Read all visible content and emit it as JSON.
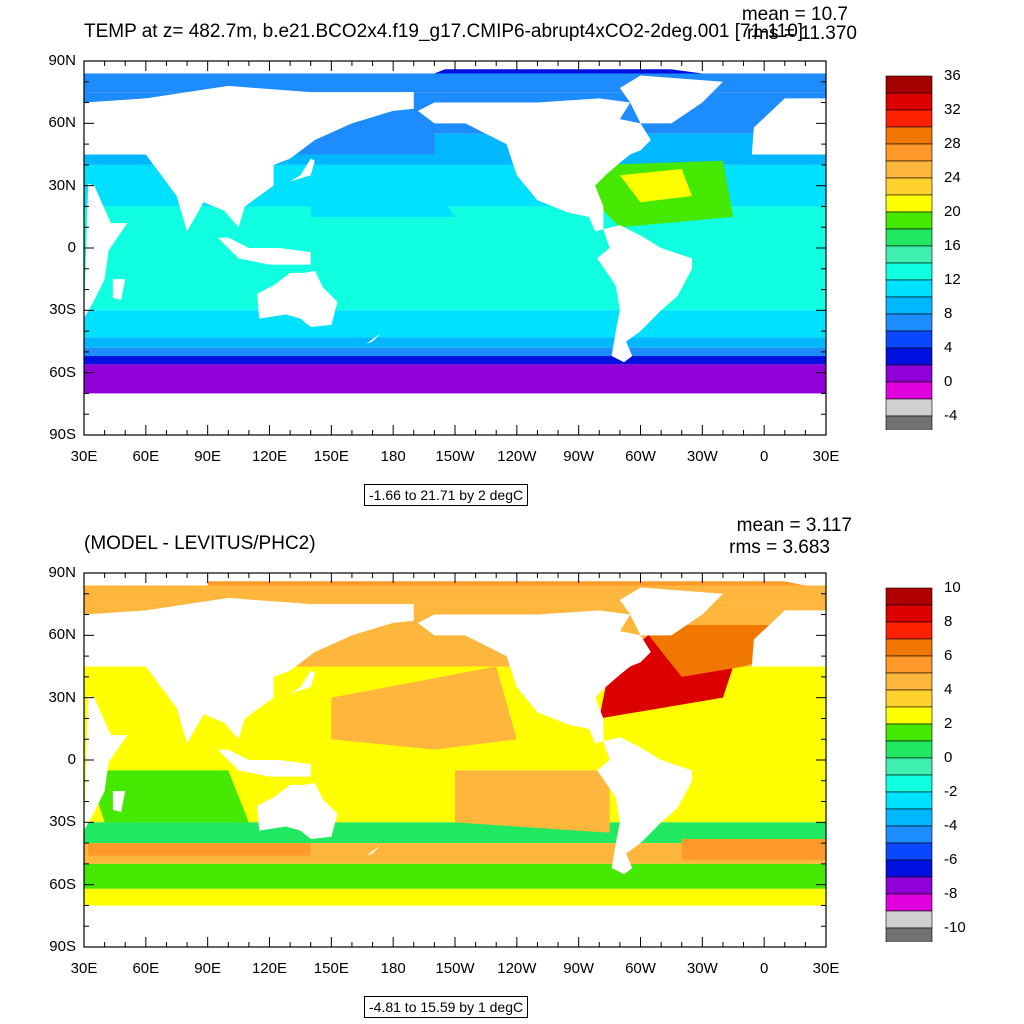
{
  "colors": {
    "land": "#ffffff",
    "axis": "#000000"
  },
  "panels": [
    {
      "title": "TEMP at z= 482.7m, b.e21.BCO2x4.f19_g17.CMIP6-abrupt4xCO2-2deg.001 [71-110]",
      "mean": "mean = 10.7",
      "rms": "rms = 11.370",
      "range_label": "-1.66 to 21.71 by 2 degC",
      "lat_labels": [
        "90N",
        "60N",
        "30N",
        "0",
        "30S",
        "60S",
        "90S"
      ],
      "lon_labels": [
        "30E",
        "60E",
        "90E",
        "120E",
        "150E",
        "180",
        "150W",
        "120W",
        "90W",
        "60W",
        "30W",
        "0",
        "30E"
      ],
      "colorbar": {
        "labels": [
          "36",
          "32",
          "28",
          "24",
          "20",
          "16",
          "12",
          "8",
          "4",
          "0",
          "-4"
        ],
        "colors": [
          "#a50000",
          "#dd0000",
          "#ff2000",
          "#f07800",
          "#ff9a2a",
          "#ffb63c",
          "#ffd22e",
          "#ffff00",
          "#44e800",
          "#20e860",
          "#40f0b0",
          "#10ffe0",
          "#00e0ff",
          "#00b8ff",
          "#1c8cff",
          "#0a48ff",
          "#0010e0",
          "#9000d8",
          "#e000e0",
          "#d0d0d0",
          "#707070"
        ]
      }
    },
    {
      "title": "(MODEL - LEVITUS/PHC2)",
      "mean": "mean = 3.117",
      "rms": "rms = 3.683",
      "range_label": "-4.81 to 15.59 by 1 degC",
      "lat_labels": [
        "90N",
        "60N",
        "30N",
        "0",
        "30S",
        "60S",
        "90S"
      ],
      "lon_labels": [
        "30E",
        "60E",
        "90E",
        "120E",
        "150E",
        "180",
        "150W",
        "120W",
        "90W",
        "60W",
        "30W",
        "0",
        "30E"
      ],
      "colorbar": {
        "labels": [
          "10",
          "8",
          "6",
          "4",
          "2",
          "0",
          "-2",
          "-4",
          "-6",
          "-8",
          "-10"
        ],
        "colors": [
          "#b00000",
          "#dd0000",
          "#ff2000",
          "#f07800",
          "#ff9a2a",
          "#ffb63c",
          "#ffd22e",
          "#ffff00",
          "#44e800",
          "#20e860",
          "#40f0b0",
          "#10ffe0",
          "#00e0ff",
          "#00b8ff",
          "#1c8cff",
          "#0a48ff",
          "#0010e0",
          "#9000d8",
          "#e000e0",
          "#d0d0d0",
          "#707070"
        ]
      }
    }
  ]
}
